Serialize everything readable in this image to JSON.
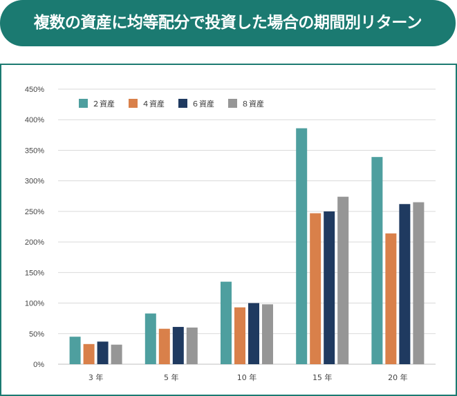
{
  "title": "複数の資産に均等配分で投資した場合の期間別リターン",
  "colors": {
    "banner": "#1b7a71",
    "frame": "#1b7a71",
    "grid": "#d9d9d9",
    "axis": "#bfbfbf"
  },
  "chart_data": {
    "type": "bar",
    "title": "複数の資産に均等配分で投資した場合の期間別リターン",
    "xlabel": "",
    "ylabel": "",
    "categories": [
      "3 年",
      "5 年",
      "10 年",
      "15 年",
      "20 年"
    ],
    "ylim": [
      0,
      450
    ],
    "yticks": [
      0,
      50,
      100,
      150,
      200,
      250,
      300,
      350,
      400,
      450
    ],
    "ytick_labels": [
      "0%",
      "50%",
      "100%",
      "150%",
      "200%",
      "250%",
      "300%",
      "350%",
      "400%",
      "450%"
    ],
    "grid": true,
    "legend_position": "top-left",
    "series": [
      {
        "name": "２資産",
        "color": "#4e9f9f",
        "values": [
          45,
          83,
          135,
          386,
          339
        ]
      },
      {
        "name": "４資産",
        "color": "#d9804a",
        "values": [
          33,
          58,
          93,
          247,
          214
        ]
      },
      {
        "name": "６資産",
        "color": "#1f3a60",
        "values": [
          37,
          61,
          100,
          250,
          262
        ]
      },
      {
        "name": "８資産",
        "color": "#969696",
        "values": [
          32,
          60,
          98,
          274,
          265
        ]
      }
    ]
  }
}
